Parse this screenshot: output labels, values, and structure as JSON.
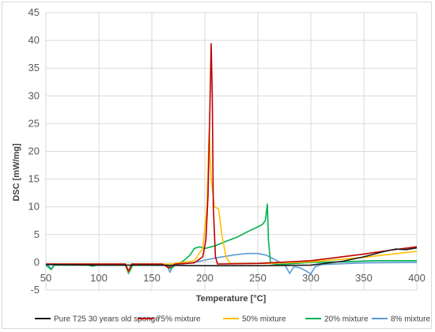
{
  "chart_data": {
    "type": "line",
    "title": "",
    "xlabel": "Temperature [°C]",
    "ylabel": "DSC [mW/mg]",
    "xlim": [
      50,
      400
    ],
    "ylim": [
      -5,
      45
    ],
    "x_ticks": [
      50,
      100,
      150,
      200,
      250,
      300,
      350,
      400
    ],
    "y_ticks": [
      -5,
      0,
      5,
      10,
      15,
      20,
      25,
      30,
      35,
      40,
      45
    ],
    "grid": "on",
    "legend_position": "bottom",
    "series": [
      {
        "name": "Pure T25 30 years old sponge",
        "color": "#1a1a1a",
        "points": [
          [
            50,
            -0.4
          ],
          [
            100,
            -0.5
          ],
          [
            150,
            -0.5
          ],
          [
            200,
            -0.6
          ],
          [
            250,
            -0.6
          ],
          [
            300,
            -0.5
          ],
          [
            330,
            0.2
          ],
          [
            350,
            1.0
          ],
          [
            370,
            2.0
          ],
          [
            380,
            2.4
          ],
          [
            390,
            2.3
          ],
          [
            400,
            2.6
          ]
        ]
      },
      {
        "name": "75% mixture",
        "color": "#c00000",
        "points": [
          [
            50,
            -0.3
          ],
          [
            125,
            -0.3
          ],
          [
            128,
            -1.6
          ],
          [
            131,
            -0.3
          ],
          [
            160,
            -0.3
          ],
          [
            166,
            -1.0
          ],
          [
            172,
            -0.3
          ],
          [
            190,
            -0.1
          ],
          [
            198,
            1.0
          ],
          [
            201,
            4.0
          ],
          [
            203,
            12.0
          ],
          [
            205,
            30.0
          ],
          [
            206,
            39.4
          ],
          [
            207,
            30.0
          ],
          [
            208,
            10.0
          ],
          [
            210,
            1.0
          ],
          [
            212,
            -0.3
          ],
          [
            250,
            -0.2
          ],
          [
            300,
            0.3
          ],
          [
            350,
            1.5
          ],
          [
            375,
            2.2
          ],
          [
            400,
            2.8
          ]
        ]
      },
      {
        "name": "50% mixture",
        "color": "#ffc000",
        "points": [
          [
            50,
            -0.3
          ],
          [
            125,
            -0.3
          ],
          [
            128,
            -1.7
          ],
          [
            131,
            -0.3
          ],
          [
            168,
            -0.3
          ],
          [
            190,
            0.3
          ],
          [
            198,
            2.5
          ],
          [
            202,
            10.0
          ],
          [
            204,
            23.8
          ],
          [
            206,
            15.0
          ],
          [
            209,
            10.0
          ],
          [
            213,
            9.6
          ],
          [
            216,
            5.0
          ],
          [
            220,
            1.0
          ],
          [
            224,
            -0.2
          ],
          [
            260,
            -0.2
          ],
          [
            300,
            0.1
          ],
          [
            350,
            0.9
          ],
          [
            400,
            2.0
          ]
        ]
      },
      {
        "name": "20% mixture",
        "color": "#00b050",
        "points": [
          [
            50,
            -0.5
          ],
          [
            55,
            -1.3
          ],
          [
            58,
            -0.5
          ],
          [
            90,
            -0.5
          ],
          [
            94,
            -0.7
          ],
          [
            98,
            -0.5
          ],
          [
            125,
            -0.5
          ],
          [
            128,
            -2.0
          ],
          [
            132,
            -0.5
          ],
          [
            165,
            -0.5
          ],
          [
            168,
            -1.2
          ],
          [
            172,
            -0.5
          ],
          [
            180,
            0.3
          ],
          [
            186,
            1.3
          ],
          [
            190,
            2.5
          ],
          [
            195,
            2.8
          ],
          [
            200,
            2.5
          ],
          [
            210,
            3.0
          ],
          [
            220,
            3.8
          ],
          [
            230,
            4.5
          ],
          [
            240,
            5.5
          ],
          [
            250,
            6.4
          ],
          [
            254,
            6.8
          ],
          [
            257,
            7.5
          ],
          [
            259,
            10.5
          ],
          [
            260,
            4.0
          ],
          [
            262,
            -0.2
          ],
          [
            270,
            -0.4
          ],
          [
            300,
            0.0
          ],
          [
            330,
            0.1
          ],
          [
            360,
            0.3
          ],
          [
            400,
            0.3
          ]
        ]
      },
      {
        "name": "8% mixture",
        "color": "#5b9bd5",
        "points": [
          [
            50,
            -0.3
          ],
          [
            52,
            -0.5
          ],
          [
            55,
            -1.2
          ],
          [
            58,
            -0.4
          ],
          [
            125,
            -0.4
          ],
          [
            128,
            -1.9
          ],
          [
            131,
            -0.4
          ],
          [
            164,
            -0.4
          ],
          [
            167,
            -1.8
          ],
          [
            170,
            -0.4
          ],
          [
            180,
            -0.3
          ],
          [
            190,
            0.0
          ],
          [
            200,
            0.4
          ],
          [
            210,
            0.8
          ],
          [
            220,
            1.1
          ],
          [
            230,
            1.4
          ],
          [
            240,
            1.6
          ],
          [
            250,
            1.6
          ],
          [
            258,
            1.3
          ],
          [
            264,
            0.7
          ],
          [
            270,
            0.1
          ],
          [
            276,
            -0.6
          ],
          [
            280,
            -2.0
          ],
          [
            284,
            -0.8
          ],
          [
            290,
            -1.0
          ],
          [
            296,
            -1.6
          ],
          [
            300,
            -2.1
          ],
          [
            304,
            -0.8
          ],
          [
            310,
            -0.4
          ],
          [
            350,
            -0.1
          ],
          [
            400,
            0.0
          ]
        ]
      }
    ]
  }
}
